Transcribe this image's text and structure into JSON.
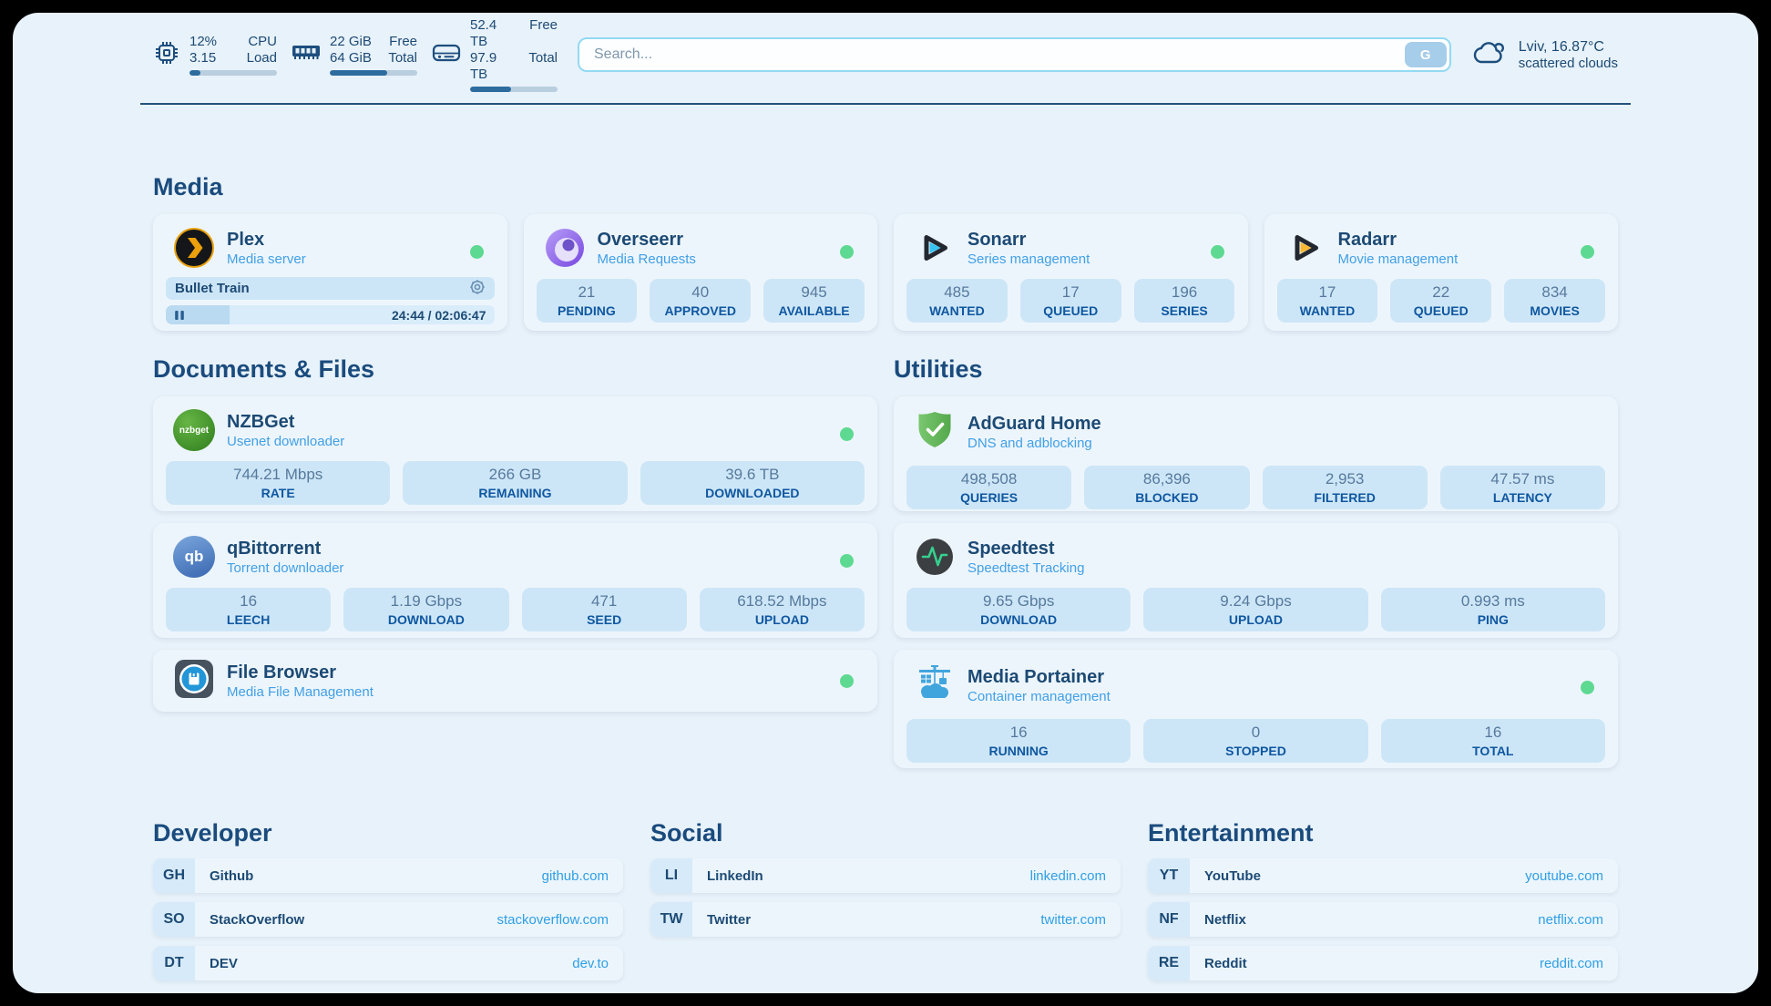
{
  "colors": {
    "accent_link": "#2f9fe5",
    "status_online": "#5ed992",
    "heading": "#1a4b7d"
  },
  "header": {
    "cpu": {
      "value": "12%",
      "load": "3.15",
      "label1": "CPU",
      "label2": "Load",
      "percent": 12
    },
    "ram": {
      "free": "22 GiB",
      "total": "64 GiB",
      "label1": "Free",
      "label2": "Total",
      "percent": 66
    },
    "disk": {
      "free": "52.4 TB",
      "total": "97.9 TB",
      "label1": "Free",
      "label2": "Total",
      "percent": 47
    },
    "search": {
      "placeholder": "Search...",
      "button_label": "G"
    },
    "weather": {
      "summary": "Lviv, 16.87°C",
      "condition": "scattered clouds"
    }
  },
  "sections": {
    "media": {
      "title": "Media",
      "apps": {
        "plex": {
          "name": "Plex",
          "description": "Media server",
          "now_playing": "Bullet Train",
          "time": "24:44 / 02:06:47",
          "progress_percent": 19.5
        },
        "overseerr": {
          "name": "Overseerr",
          "description": "Media Requests",
          "stats": [
            {
              "value": "21",
              "label": "PENDING"
            },
            {
              "value": "40",
              "label": "APPROVED"
            },
            {
              "value": "945",
              "label": "AVAILABLE"
            }
          ]
        },
        "sonarr": {
          "name": "Sonarr",
          "description": "Series management",
          "stats": [
            {
              "value": "485",
              "label": "WANTED"
            },
            {
              "value": "17",
              "label": "QUEUED"
            },
            {
              "value": "196",
              "label": "SERIES"
            }
          ]
        },
        "radarr": {
          "name": "Radarr",
          "description": "Movie management",
          "stats": [
            {
              "value": "17",
              "label": "WANTED"
            },
            {
              "value": "22",
              "label": "QUEUED"
            },
            {
              "value": "834",
              "label": "MOVIES"
            }
          ]
        }
      }
    },
    "documents": {
      "title": "Documents & Files",
      "apps": {
        "nzbget": {
          "name": "NZBGet",
          "description": "Usenet downloader",
          "stats": [
            {
              "value": "744.21 Mbps",
              "label": "RATE"
            },
            {
              "value": "266 GB",
              "label": "REMAINING"
            },
            {
              "value": "39.6 TB",
              "label": "DOWNLOADED"
            }
          ]
        },
        "qbittorrent": {
          "name": "qBittorrent",
          "description": "Torrent downloader",
          "stats": [
            {
              "value": "16",
              "label": "LEECH"
            },
            {
              "value": "1.19 Gbps",
              "label": "DOWNLOAD"
            },
            {
              "value": "471",
              "label": "SEED"
            },
            {
              "value": "618.52 Mbps",
              "label": "UPLOAD"
            }
          ]
        },
        "filebrowser": {
          "name": "File Browser",
          "description": "Media File Management"
        }
      }
    },
    "utilities": {
      "title": "Utilities",
      "apps": {
        "adguard": {
          "name": "AdGuard Home",
          "description": "DNS and adblocking",
          "stats": [
            {
              "value": "498,508",
              "label": "QUERIES"
            },
            {
              "value": "86,396",
              "label": "BLOCKED"
            },
            {
              "value": "2,953",
              "label": "FILTERED"
            },
            {
              "value": "47.57 ms",
              "label": "LATENCY"
            }
          ]
        },
        "speedtest": {
          "name": "Speedtest",
          "description": "Speedtest Tracking",
          "stats": [
            {
              "value": "9.65 Gbps",
              "label": "DOWNLOAD"
            },
            {
              "value": "9.24 Gbps",
              "label": "UPLOAD"
            },
            {
              "value": "0.993 ms",
              "label": "PING"
            }
          ]
        },
        "portainer": {
          "name": "Media Portainer",
          "description": "Container management",
          "stats": [
            {
              "value": "16",
              "label": "RUNNING"
            },
            {
              "value": "0",
              "label": "STOPPED"
            },
            {
              "value": "16",
              "label": "TOTAL"
            }
          ]
        }
      }
    }
  },
  "bookmarks": {
    "developer": {
      "title": "Developer",
      "items": [
        {
          "abbr": "GH",
          "name": "Github",
          "url": "github.com"
        },
        {
          "abbr": "SO",
          "name": "StackOverflow",
          "url": "stackoverflow.com"
        },
        {
          "abbr": "DT",
          "name": "DEV",
          "url": "dev.to"
        }
      ]
    },
    "social": {
      "title": "Social",
      "items": [
        {
          "abbr": "LI",
          "name": "LinkedIn",
          "url": "linkedin.com"
        },
        {
          "abbr": "TW",
          "name": "Twitter",
          "url": "twitter.com"
        }
      ]
    },
    "entertainment": {
      "title": "Entertainment",
      "items": [
        {
          "abbr": "YT",
          "name": "YouTube",
          "url": "youtube.com"
        },
        {
          "abbr": "NF",
          "name": "Netflix",
          "url": "netflix.com"
        },
        {
          "abbr": "RE",
          "name": "Reddit",
          "url": "reddit.com"
        }
      ]
    }
  },
  "icons": {
    "nzbget_label": "nzbget",
    "qbittorrent_label": "qb"
  }
}
